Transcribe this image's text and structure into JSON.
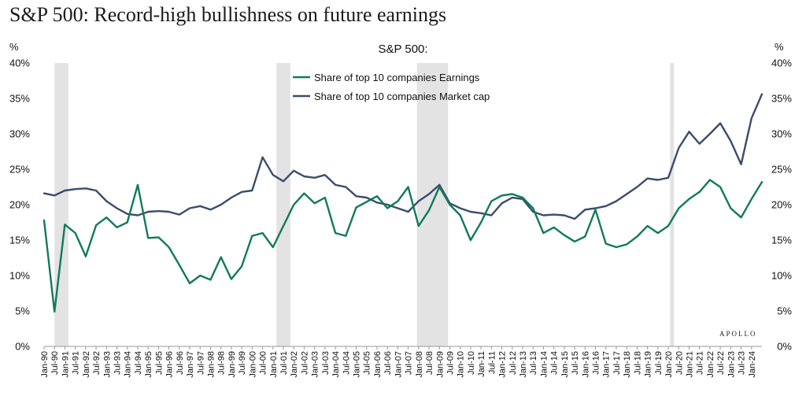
{
  "title": "S&P 500: Record-high bullishness on future earnings",
  "watermark": "APOLLO",
  "chart_data": {
    "type": "line",
    "subtitle": "S&P 500:",
    "ylabel_left": "%",
    "ylabel_right": "%",
    "ylim": [
      0,
      40
    ],
    "yticks": [
      "0%",
      "5%",
      "10%",
      "15%",
      "20%",
      "25%",
      "30%",
      "35%",
      "40%"
    ],
    "x_start": "Jan-90",
    "x_end": "Jul-24",
    "xtick_labels": [
      "Jan-90",
      "Jul-90",
      "Jan-91",
      "Jul-91",
      "Jan-92",
      "Jul-92",
      "Jan-93",
      "Jul-93",
      "Jan-94",
      "Jul-94",
      "Jan-95",
      "Jul-95",
      "Jan-96",
      "Jul-96",
      "Jan-97",
      "Jul-97",
      "Jan-98",
      "Jul-98",
      "Jan-99",
      "Jul-99",
      "Jan-00",
      "Jul-00",
      "Jan-01",
      "Jul-01",
      "Jan-02",
      "Jul-02",
      "Jan-03",
      "Jul-03",
      "Jan-04",
      "Jul-04",
      "Jan-05",
      "Jul-05",
      "Jan-06",
      "Jul-06",
      "Jan-07",
      "Jul-07",
      "Jan-08",
      "Jul-08",
      "Jan-09",
      "Jul-09",
      "Jan-10",
      "Jul-10",
      "Jan-11",
      "Jul-11",
      "Jan-12",
      "Jul-12",
      "Jan-13",
      "Jul-13",
      "Jan-14",
      "Jul-14",
      "Jan-15",
      "Jul-15",
      "Jan-16",
      "Jul-16",
      "Jan-17",
      "Jul-17",
      "Jan-18",
      "Jul-18",
      "Jan-19",
      "Jul-19",
      "Jan-20",
      "Jul-20",
      "Jan-21",
      "Jul-21",
      "Jan-22",
      "Jul-22",
      "Jan-23",
      "Jul-23",
      "Jan-24"
    ],
    "recessions": [
      {
        "start": "Jul-90",
        "end": "Mar-91"
      },
      {
        "start": "Mar-01",
        "end": "Nov-01"
      },
      {
        "start": "Dec-07",
        "end": "Jun-09"
      },
      {
        "start": "Feb-20",
        "end": "Apr-20"
      }
    ],
    "series": [
      {
        "name": "Share of top 10 companies Earnings",
        "color": "#117a5b",
        "x": [
          "Jan-90",
          "Jul-90",
          "Jan-91",
          "Jul-91",
          "Jan-92",
          "Jul-92",
          "Jan-93",
          "Jul-93",
          "Jan-94",
          "Jul-94",
          "Jan-95",
          "Jul-95",
          "Jan-96",
          "Jul-96",
          "Jan-97",
          "Jul-97",
          "Jan-98",
          "Jul-98",
          "Jan-99",
          "Jul-99",
          "Jan-00",
          "Jul-00",
          "Jan-01",
          "Jul-01",
          "Jan-02",
          "Jul-02",
          "Jan-03",
          "Jul-03",
          "Jan-04",
          "Jul-04",
          "Jan-05",
          "Jul-05",
          "Jan-06",
          "Jul-06",
          "Jan-07",
          "Jul-07",
          "Jan-08",
          "Jul-08",
          "Jan-09",
          "Jul-09",
          "Jan-10",
          "Jul-10",
          "Jan-11",
          "Jul-11",
          "Jan-12",
          "Jul-12",
          "Jan-13",
          "Jul-13",
          "Jan-14",
          "Jul-14",
          "Jan-15",
          "Jul-15",
          "Jan-16",
          "Jul-16",
          "Jan-17",
          "Jul-17",
          "Jan-18",
          "Jul-18",
          "Jan-19",
          "Jul-19",
          "Jan-20",
          "Jul-20",
          "Jan-21",
          "Jul-21",
          "Jan-22",
          "Jul-22",
          "Jan-23",
          "Jul-23",
          "Jan-24",
          "Jul-24"
        ],
        "values": [
          17.8,
          4.9,
          17.2,
          16.0,
          12.7,
          17.1,
          18.2,
          16.8,
          17.5,
          22.8,
          15.3,
          15.4,
          14.0,
          11.5,
          8.9,
          10.0,
          9.4,
          12.6,
          9.5,
          11.3,
          15.6,
          16.0,
          14.0,
          17.0,
          20.0,
          21.6,
          20.2,
          21.0,
          16.0,
          15.6,
          19.6,
          20.4,
          21.2,
          19.5,
          20.5,
          22.5,
          17.0,
          19.2,
          22.5,
          20.0,
          18.5,
          15.0,
          17.5,
          20.5,
          21.3,
          21.5,
          21.0,
          19.5,
          16.0,
          16.8,
          15.7,
          14.8,
          15.5,
          19.3,
          14.5,
          14.0,
          14.4,
          15.5,
          17.0,
          16.0,
          17.0,
          19.5,
          20.8,
          21.8,
          23.5,
          22.5,
          19.5,
          18.2,
          20.8,
          23.2
        ]
      },
      {
        "name": "Share of top 10 companies Market cap",
        "color": "#3b4d6b",
        "x": [
          "Jan-90",
          "Jul-90",
          "Jan-91",
          "Jul-91",
          "Jan-92",
          "Jul-92",
          "Jan-93",
          "Jul-93",
          "Jan-94",
          "Jul-94",
          "Jan-95",
          "Jul-95",
          "Jan-96",
          "Jul-96",
          "Jan-97",
          "Jul-97",
          "Jan-98",
          "Jul-98",
          "Jan-99",
          "Jul-99",
          "Jan-00",
          "Jul-00",
          "Jan-01",
          "Jul-01",
          "Jan-02",
          "Jul-02",
          "Jan-03",
          "Jul-03",
          "Jan-04",
          "Jul-04",
          "Jan-05",
          "Jul-05",
          "Jan-06",
          "Jul-06",
          "Jan-07",
          "Jul-07",
          "Jan-08",
          "Jul-08",
          "Jan-09",
          "Jul-09",
          "Jan-10",
          "Jul-10",
          "Jan-11",
          "Jul-11",
          "Jan-12",
          "Jul-12",
          "Jan-13",
          "Jul-13",
          "Jan-14",
          "Jul-14",
          "Jan-15",
          "Jul-15",
          "Jan-16",
          "Jul-16",
          "Jan-17",
          "Jul-17",
          "Jan-18",
          "Jul-18",
          "Jan-19",
          "Jul-19",
          "Jan-20",
          "Jul-20",
          "Jan-21",
          "Jul-21",
          "Jan-22",
          "Jul-22",
          "Jan-23",
          "Jul-23",
          "Jan-24",
          "Jul-24"
        ],
        "values": [
          21.6,
          21.3,
          22.0,
          22.2,
          22.3,
          22.0,
          20.5,
          19.5,
          18.7,
          18.5,
          19.0,
          19.1,
          19.0,
          18.6,
          19.5,
          19.8,
          19.3,
          20.0,
          21.0,
          21.8,
          22.0,
          26.7,
          24.2,
          23.3,
          24.8,
          24.0,
          23.8,
          24.2,
          22.8,
          22.5,
          21.2,
          21.0,
          20.3,
          20.0,
          19.5,
          19.0,
          20.5,
          21.5,
          22.8,
          20.2,
          19.5,
          19.0,
          18.8,
          18.5,
          20.2,
          21.0,
          20.8,
          19.0,
          18.5,
          18.6,
          18.5,
          18.0,
          19.3,
          19.5,
          19.8,
          20.5,
          21.5,
          22.5,
          23.7,
          23.5,
          23.8,
          28.0,
          30.3,
          28.6,
          30.0,
          31.5,
          29.0,
          25.7,
          32.2,
          35.6
        ]
      }
    ]
  }
}
